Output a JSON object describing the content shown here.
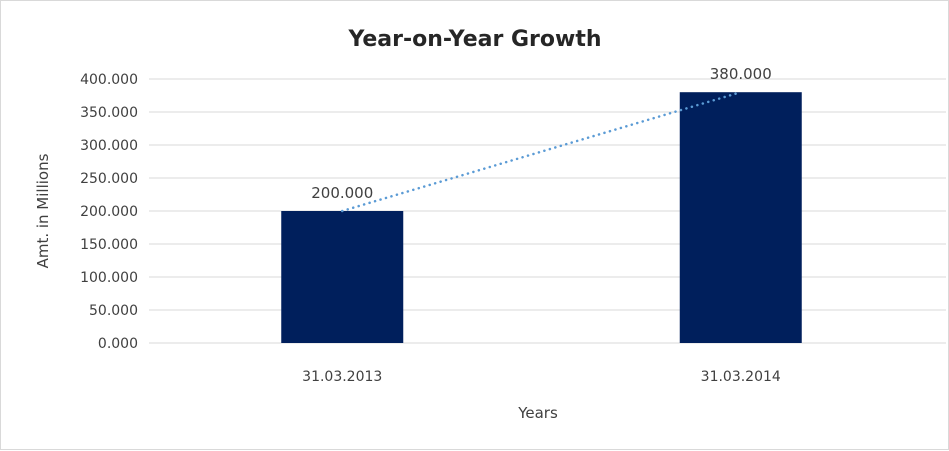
{
  "chart_data": {
    "type": "bar",
    "title": "Year-on-Year Growth",
    "xlabel": "Years",
    "ylabel": "Amt. in Millions",
    "categories": [
      "31.03.2013",
      "31.03.2014"
    ],
    "values": [
      200,
      380
    ],
    "data_labels": [
      "200.000",
      "380.000"
    ],
    "ylim": [
      0,
      400
    ],
    "yticks": [
      0,
      50,
      100,
      150,
      200,
      250,
      300,
      350,
      400
    ],
    "ytick_labels": [
      "0.000",
      "50.000",
      "100.000",
      "150.000",
      "200.000",
      "250.000",
      "300.000",
      "350.000",
      "400.000"
    ],
    "grid": true,
    "trendline": "linear dotted",
    "bar_color": "#001F5C",
    "trend_color": "#5B9BD5"
  }
}
